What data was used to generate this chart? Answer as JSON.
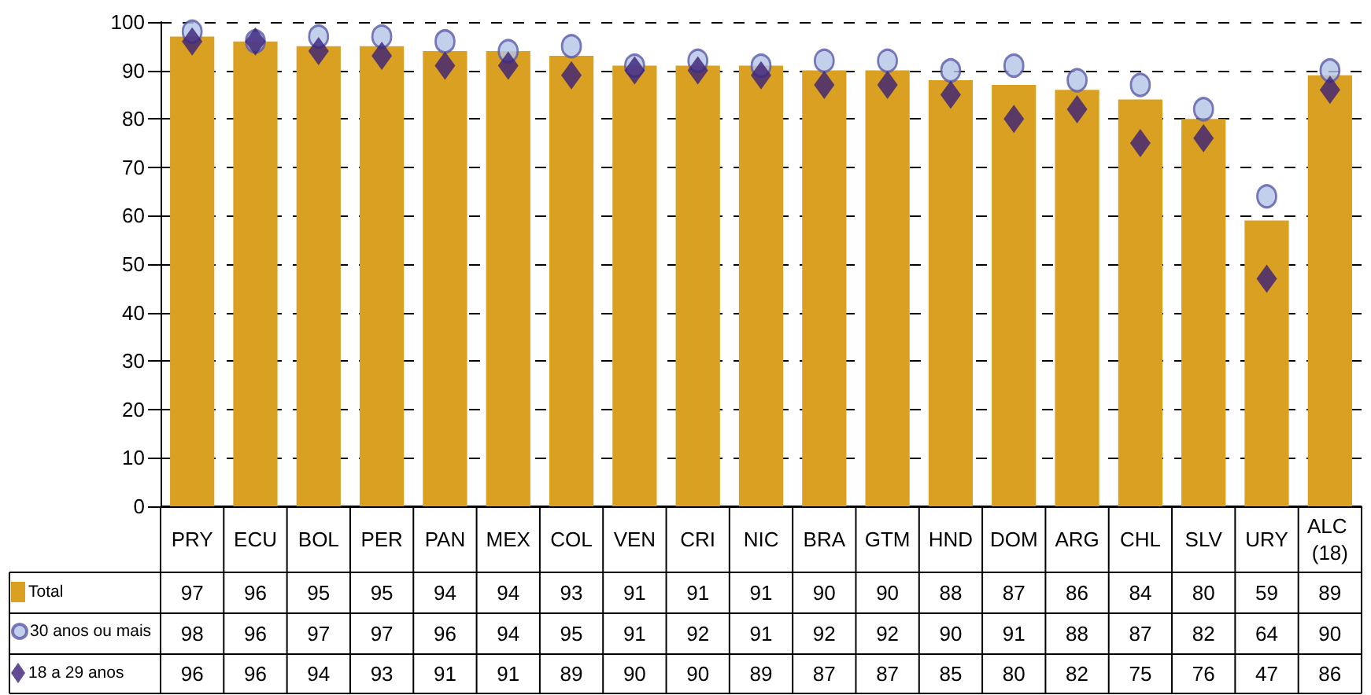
{
  "chart_data": {
    "type": "bar",
    "categories": [
      "PRY",
      "ECU",
      "BOL",
      "PER",
      "PAN",
      "MEX",
      "COL",
      "VEN",
      "CRI",
      "NIC",
      "BRA",
      "GTM",
      "HND",
      "DOM",
      "ARG",
      "CHL",
      "SLV",
      "URY",
      "ALC (18)"
    ],
    "series": [
      {
        "name": "Total",
        "color": "#daa021",
        "values": [
          97,
          96,
          95,
          95,
          94,
          94,
          93,
          91,
          91,
          91,
          90,
          90,
          88,
          87,
          86,
          84,
          80,
          59,
          89
        ]
      },
      {
        "name": "30 anos ou mais",
        "type": "scatter",
        "marker": "circle",
        "color": "#b4c4e6",
        "values": [
          98,
          96,
          97,
          97,
          96,
          94,
          95,
          91,
          92,
          91,
          92,
          92,
          90,
          91,
          88,
          87,
          82,
          64,
          90
        ]
      },
      {
        "name": "18 a 29 anos",
        "type": "scatter",
        "marker": "diamond",
        "color": "#3a1f78",
        "values": [
          96,
          96,
          94,
          93,
          91,
          91,
          89,
          90,
          90,
          89,
          87,
          87,
          85,
          80,
          82,
          75,
          76,
          47,
          86
        ]
      }
    ],
    "ylim": [
      0,
      100
    ],
    "yticks": [
      0,
      10,
      20,
      30,
      40,
      50,
      60,
      70,
      80,
      90,
      100
    ],
    "grid": "y",
    "legend": "bottom left",
    "data_labels": true
  }
}
